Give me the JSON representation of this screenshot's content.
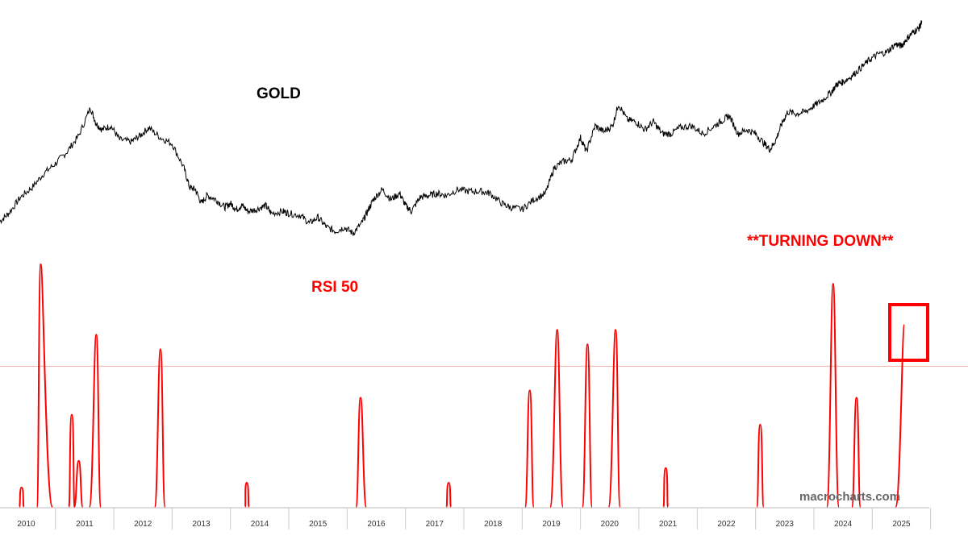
{
  "chart_data": [
    {
      "type": "line",
      "title": "GOLD",
      "color": "#000000",
      "x_ticks": [
        "2010",
        "2011",
        "2012",
        "2013",
        "2014",
        "2015",
        "2016",
        "2017",
        "2018",
        "2019",
        "2020",
        "2021",
        "2022",
        "2023",
        "2024",
        "2025"
      ],
      "x_range": [
        2009.55,
        2025.45
      ],
      "y_range": [
        0,
        1
      ],
      "series": [
        {
          "values_note": "",
          "x": [
            2009.55,
            2009.7,
            2009.9,
            2010.1,
            2010.3,
            2010.5,
            2010.7,
            2010.9,
            2011.1,
            2011.2,
            2011.3,
            2011.45,
            2011.6,
            2011.8,
            2011.95,
            2012.1,
            2012.3,
            2012.5,
            2012.7,
            2012.8,
            2012.9,
            2013.0,
            2013.1,
            2013.25,
            2013.4,
            2013.5,
            2013.6,
            2013.7,
            2013.8,
            2013.95,
            2014.1,
            2014.2,
            2014.4,
            2014.5,
            2014.7,
            2014.85,
            2015.0,
            2015.15,
            2015.3,
            2015.45,
            2015.6,
            2015.75,
            2015.85,
            2015.95,
            2016.1,
            2016.25,
            2016.4,
            2016.5,
            2016.6,
            2016.75,
            2016.9,
            2017.05,
            2017.2,
            2017.4,
            2017.6,
            2017.8,
            2017.95,
            2018.15,
            2018.3,
            2018.5,
            2018.7,
            2018.9,
            2019.05,
            2019.2,
            2019.35,
            2019.5,
            2019.6,
            2019.75,
            2019.9,
            2020.05,
            2020.15,
            2020.3,
            2020.45,
            2020.6,
            2020.75,
            2020.9,
            2021.05,
            2021.2,
            2021.4,
            2021.6,
            2021.8,
            2021.95,
            2022.05,
            2022.2,
            2022.35,
            2022.5,
            2022.65,
            2022.75,
            2022.85,
            2022.95,
            2023.05,
            2023.2,
            2023.35,
            2023.5,
            2023.65,
            2023.8,
            2023.9,
            2024.0,
            2024.15,
            2024.3,
            2024.45,
            2024.6,
            2024.75,
            2024.9,
            2025.0,
            2025.1,
            2025.2,
            2025.3,
            2025.35
          ],
          "y": [
            0.03,
            0.07,
            0.15,
            0.2,
            0.27,
            0.32,
            0.38,
            0.46,
            0.6,
            0.52,
            0.49,
            0.51,
            0.44,
            0.43,
            0.46,
            0.5,
            0.45,
            0.42,
            0.3,
            0.2,
            0.19,
            0.12,
            0.16,
            0.14,
            0.1,
            0.12,
            0.09,
            0.11,
            0.08,
            0.09,
            0.11,
            0.07,
            0.08,
            0.07,
            0.06,
            0.02,
            0.05,
            0.0,
            -0.02,
            0.0,
            -0.03,
            0.02,
            0.08,
            0.14,
            0.19,
            0.14,
            0.17,
            0.11,
            0.08,
            0.15,
            0.16,
            0.17,
            0.16,
            0.19,
            0.18,
            0.18,
            0.17,
            0.12,
            0.1,
            0.09,
            0.14,
            0.17,
            0.3,
            0.33,
            0.34,
            0.45,
            0.38,
            0.51,
            0.48,
            0.51,
            0.62,
            0.54,
            0.53,
            0.49,
            0.53,
            0.47,
            0.47,
            0.5,
            0.51,
            0.47,
            0.51,
            0.54,
            0.56,
            0.47,
            0.49,
            0.47,
            0.42,
            0.39,
            0.44,
            0.52,
            0.58,
            0.57,
            0.58,
            0.61,
            0.64,
            0.68,
            0.72,
            0.73,
            0.76,
            0.8,
            0.84,
            0.87,
            0.88,
            0.92,
            0.91,
            0.95,
            0.98,
            1.0,
            1.03
          ]
        }
      ]
    },
    {
      "type": "line",
      "title": "RSI 50",
      "color": "#ff0000",
      "threshold_line": {
        "value": 0.58,
        "color": "#f2b8b0"
      },
      "annotation": "**TURNING DOWN**",
      "x_range": [
        2009.55,
        2025.45
      ],
      "y_range": [
        0,
        1
      ],
      "spikes": [
        {
          "start": 2009.88,
          "peak": 2009.92,
          "end": 2009.96,
          "height": 0.08
        },
        {
          "start": 2010.18,
          "peak": 2010.25,
          "end": 2010.45,
          "height": 1.0
        },
        {
          "start": 2010.73,
          "peak": 2010.78,
          "end": 2010.83,
          "height": 0.38
        },
        {
          "start": 2010.82,
          "peak": 2010.9,
          "end": 2010.97,
          "height": 0.19
        },
        {
          "start": 2011.08,
          "peak": 2011.2,
          "end": 2011.28,
          "height": 0.71
        },
        {
          "start": 2012.2,
          "peak": 2012.3,
          "end": 2012.38,
          "height": 0.65
        },
        {
          "start": 2013.75,
          "peak": 2013.78,
          "end": 2013.82,
          "height": 0.1
        },
        {
          "start": 2015.65,
          "peak": 2015.73,
          "end": 2015.83,
          "height": 0.45
        },
        {
          "start": 2017.2,
          "peak": 2017.24,
          "end": 2017.28,
          "height": 0.1
        },
        {
          "start": 2018.55,
          "peak": 2018.63,
          "end": 2018.7,
          "height": 0.48
        },
        {
          "start": 2018.98,
          "peak": 2019.1,
          "end": 2019.2,
          "height": 0.73
        },
        {
          "start": 2019.53,
          "peak": 2019.62,
          "end": 2019.7,
          "height": 0.67
        },
        {
          "start": 2019.98,
          "peak": 2020.1,
          "end": 2020.18,
          "height": 0.73
        },
        {
          "start": 2020.92,
          "peak": 2020.96,
          "end": 2021.0,
          "height": 0.16
        },
        {
          "start": 2022.52,
          "peak": 2022.58,
          "end": 2022.64,
          "height": 0.34
        },
        {
          "start": 2023.72,
          "peak": 2023.83,
          "end": 2023.93,
          "height": 0.92
        },
        {
          "start": 2024.15,
          "peak": 2024.23,
          "end": 2024.3,
          "height": 0.45
        },
        {
          "start": 2024.9,
          "peak": 2025.05,
          "end": 2025.05,
          "height": 0.75
        }
      ]
    }
  ],
  "watermark": "macrocharts.com",
  "colors": {
    "gold_line": "#000000",
    "rsi_line": "#ff0000",
    "threshold": "#f2b8b0",
    "box": "#ff0000"
  }
}
